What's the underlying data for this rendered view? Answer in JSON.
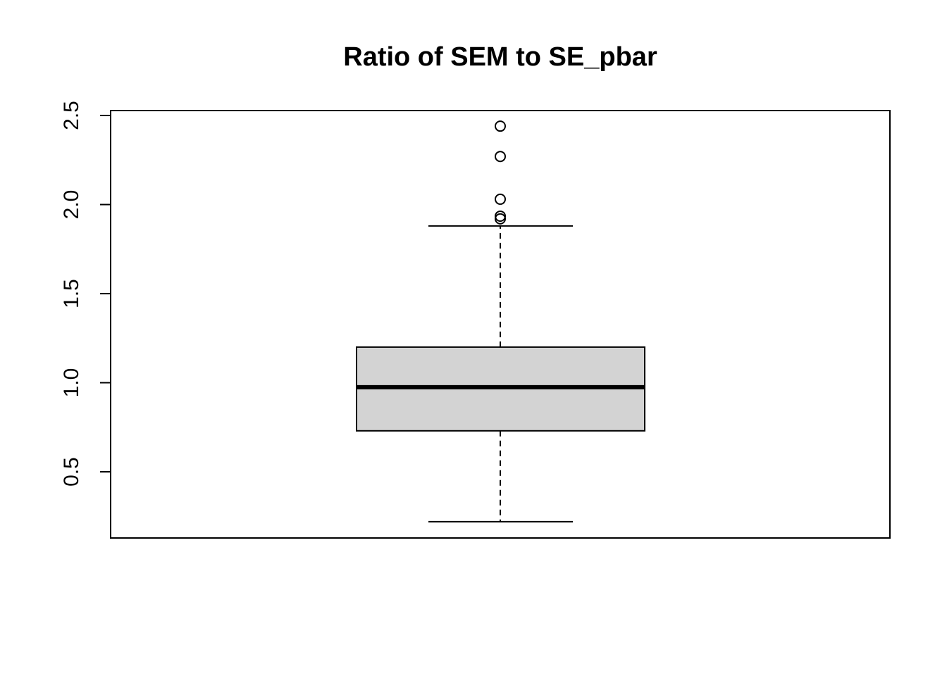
{
  "chart_data": {
    "type": "boxplot",
    "title": "Ratio of SEM to SE_pbar",
    "xlabel": "",
    "ylabel": "",
    "ylim": [
      0.2,
      2.6
    ],
    "yticks": [
      0.5,
      1.0,
      1.5,
      2.0,
      2.5
    ],
    "ytick_labels": [
      "0.5",
      "1.0",
      "1.5",
      "2.0",
      "2.5"
    ],
    "grid": false,
    "box": {
      "whisker_low": 0.22,
      "q1": 0.73,
      "median": 0.975,
      "q3": 1.2,
      "whisker_high": 1.88
    },
    "outliers": [
      1.92,
      1.935,
      2.03,
      2.27,
      2.44
    ],
    "colors": {
      "box_fill": "#d3d3d3",
      "stroke": "#000000"
    }
  }
}
